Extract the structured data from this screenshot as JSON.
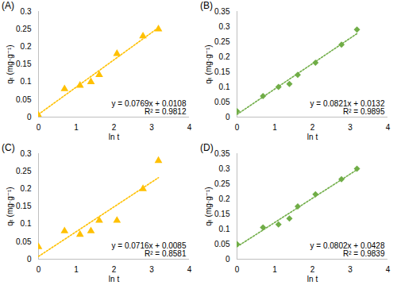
{
  "chart_data": [
    {
      "type": "scatter",
      "title": "(A)",
      "x_label": "ln t",
      "y_label": "qₜ (mg·g⁻¹)",
      "x": [
        0,
        0.69,
        1.1,
        1.39,
        1.61,
        2.08,
        2.77,
        3.18
      ],
      "series": [
        {
          "name": "(A)",
          "color": "#ffc000",
          "marker": "triangle",
          "line_style": "dotted",
          "values": [
            0.005,
            0.08,
            0.09,
            0.1,
            0.12,
            0.18,
            0.23,
            0.25
          ]
        }
      ],
      "annotations": [
        "y = 0.0769x + 0.0108",
        "R² = 0.9812"
      ],
      "xlim": [
        0,
        4
      ],
      "xticks": [
        0,
        1,
        2,
        3,
        4
      ],
      "ylim": [
        0,
        0.3
      ],
      "yticks": [
        0,
        0.05,
        0.1,
        0.15,
        0.2,
        0.25,
        0.3
      ],
      "grid": false
    },
    {
      "type": "scatter",
      "title": "(B)",
      "x_label": "ln t",
      "y_label": "qₜ (mg·g⁻¹)",
      "x": [
        0,
        0.69,
        1.1,
        1.39,
        1.61,
        2.08,
        2.77,
        3.18
      ],
      "series": [
        {
          "name": "(B)",
          "color": "#70ad47",
          "marker": "diamond",
          "line_style": "dotted",
          "values": [
            0.02,
            0.07,
            0.1,
            0.11,
            0.14,
            0.18,
            0.24,
            0.29
          ]
        }
      ],
      "annotations": [
        "y = 0.0821x + 0.0132",
        "R² = 0.9895"
      ],
      "xlim": [
        0,
        4
      ],
      "xticks": [
        0,
        1,
        2,
        3,
        4
      ],
      "ylim": [
        0,
        0.35
      ],
      "yticks": [
        0,
        0.05,
        0.1,
        0.15,
        0.2,
        0.25,
        0.3,
        0.35
      ],
      "grid": false
    },
    {
      "type": "scatter",
      "title": "(C)",
      "x_label": "ln t",
      "y_label": "qₜ (mg·g⁻¹)",
      "x": [
        0,
        0.69,
        1.1,
        1.39,
        1.61,
        2.08,
        2.77,
        3.18
      ],
      "series": [
        {
          "name": "(C)",
          "color": "#ffc000",
          "marker": "triangle",
          "line_style": "dotted",
          "values": [
            0.035,
            0.08,
            0.07,
            0.08,
            0.11,
            0.11,
            0.2,
            0.28
          ]
        }
      ],
      "annotations": [
        "y = 0.0716x + 0.0085",
        "R² = 0.8581"
      ],
      "xlim": [
        0,
        4
      ],
      "xticks": [
        0,
        1,
        2,
        3,
        4
      ],
      "ylim": [
        0,
        0.3
      ],
      "yticks": [
        0,
        0.05,
        0.1,
        0.15,
        0.2,
        0.25,
        0.3
      ],
      "grid": false
    },
    {
      "type": "scatter",
      "title": "(D)",
      "x_label": "ln t",
      "y_label": "qₜ (mg·g⁻¹)",
      "x": [
        0,
        0.69,
        1.1,
        1.39,
        1.61,
        2.08,
        2.77,
        3.18
      ],
      "series": [
        {
          "name": "(D)",
          "color": "#70ad47",
          "marker": "diamond",
          "line_style": "dotted",
          "values": [
            0.05,
            0.105,
            0.115,
            0.135,
            0.175,
            0.215,
            0.265,
            0.3
          ]
        }
      ],
      "annotations": [
        "y = 0.0802x + 0.0428",
        "R² = 0.9839"
      ],
      "xlim": [
        0,
        4
      ],
      "xticks": [
        0,
        1,
        2,
        3,
        4
      ],
      "ylim": [
        0,
        0.35
      ],
      "yticks": [
        0,
        0.05,
        0.1,
        0.15,
        0.2,
        0.25,
        0.3,
        0.35
      ],
      "grid": false
    }
  ]
}
